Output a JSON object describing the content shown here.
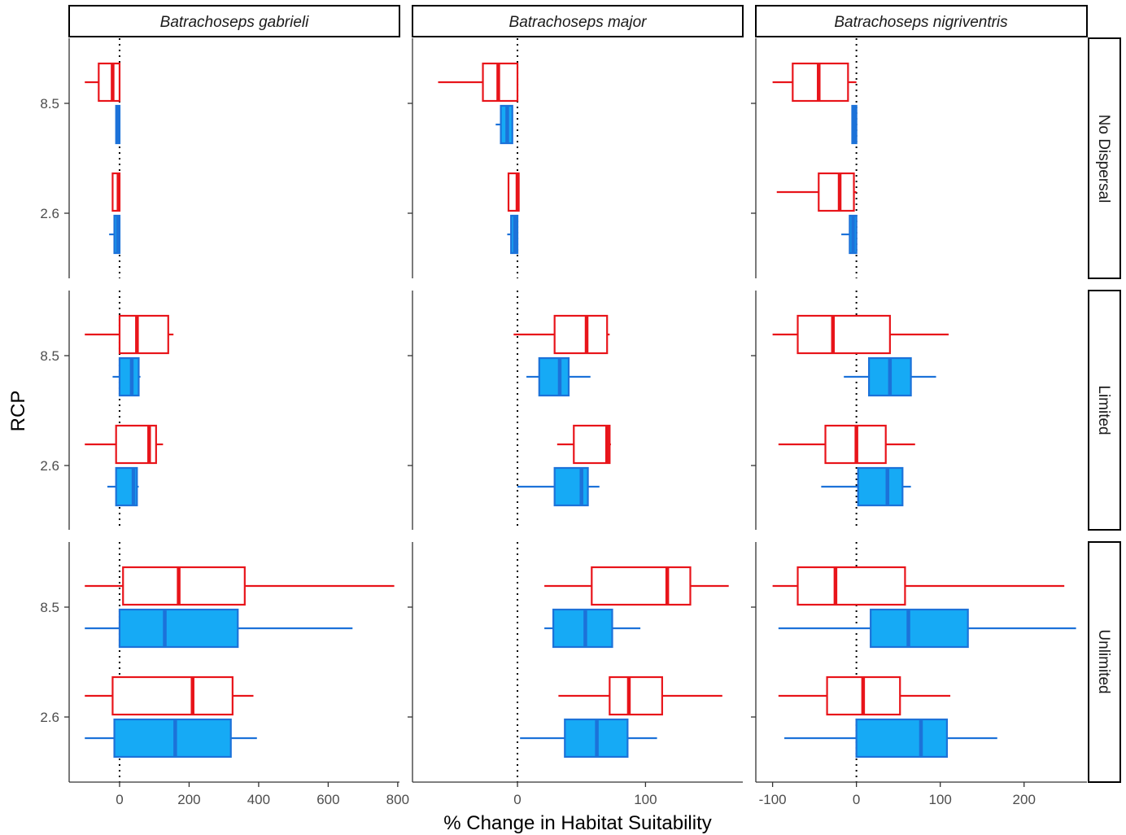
{
  "chart_data": {
    "type": "box",
    "title": "",
    "xlabel": "% Change in Habitat Suitability",
    "ylabel": "RCP",
    "y_categories": [
      "8.5",
      "2.6"
    ],
    "species": [
      "Batrachoseps gabrieli",
      "Batrachoseps major",
      "Batrachoseps nigriventris"
    ],
    "dispersal": [
      "No Dispersal",
      "Limited",
      "Unlimited"
    ],
    "colors": {
      "red": "#e8141a",
      "blue": "#1c72d9",
      "blue_fill": "#16aaf5"
    },
    "x_axes": [
      {
        "xlim": [
          -145,
          805
        ],
        "ticks": [
          0,
          200,
          400,
          600,
          800
        ],
        "tick_labels": [
          "0",
          "200",
          "400",
          "600",
          "800"
        ]
      },
      {
        "xlim": [
          -82,
          176
        ],
        "ticks": [
          0,
          100
        ],
        "tick_labels": [
          "0",
          "100"
        ]
      },
      {
        "xlim": [
          -120,
          275
        ],
        "ticks": [
          -100,
          0,
          100,
          200
        ],
        "tick_labels": [
          "-100",
          "0",
          "100",
          "200"
        ]
      }
    ],
    "reference_line": 0,
    "boxes": [
      {
        "species": 0,
        "dispersal": 0,
        "rcp": "8.5",
        "color": "red",
        "stats": [
          -100,
          -60,
          -20,
          0,
          0
        ]
      },
      {
        "species": 0,
        "dispersal": 0,
        "rcp": "8.5",
        "color": "blue",
        "stats": [
          -10,
          -10,
          -3,
          0,
          0
        ]
      },
      {
        "species": 0,
        "dispersal": 0,
        "rcp": "2.6",
        "color": "red",
        "stats": [
          -20,
          -20,
          -3,
          0,
          0
        ]
      },
      {
        "species": 0,
        "dispersal": 0,
        "rcp": "2.6",
        "color": "blue",
        "stats": [
          -30,
          -15,
          -5,
          0,
          0
        ]
      },
      {
        "species": 1,
        "dispersal": 0,
        "rcp": "8.5",
        "color": "red",
        "stats": [
          -62,
          -27,
          -15,
          0,
          0
        ]
      },
      {
        "species": 1,
        "dispersal": 0,
        "rcp": "8.5",
        "color": "blue",
        "stats": [
          -17,
          -13,
          -8,
          -4,
          -4
        ]
      },
      {
        "species": 1,
        "dispersal": 0,
        "rcp": "2.6",
        "color": "red",
        "stats": [
          -7,
          -7,
          0,
          1,
          1
        ]
      },
      {
        "species": 1,
        "dispersal": 0,
        "rcp": "2.6",
        "color": "blue",
        "stats": [
          -8,
          -5,
          -2,
          0,
          0
        ]
      },
      {
        "species": 2,
        "dispersal": 0,
        "rcp": "8.5",
        "color": "red",
        "stats": [
          -100,
          -76,
          -45,
          -10,
          0
        ]
      },
      {
        "species": 2,
        "dispersal": 0,
        "rcp": "8.5",
        "color": "blue",
        "stats": [
          -5,
          -5,
          -2,
          0,
          0
        ]
      },
      {
        "species": 2,
        "dispersal": 0,
        "rcp": "2.6",
        "color": "red",
        "stats": [
          -95,
          -45,
          -20,
          -3,
          0
        ]
      },
      {
        "species": 2,
        "dispersal": 0,
        "rcp": "2.6",
        "color": "blue",
        "stats": [
          -18,
          -8,
          -4,
          0,
          0
        ]
      },
      {
        "species": 0,
        "dispersal": 1,
        "rcp": "8.5",
        "color": "red",
        "stats": [
          -100,
          0,
          50,
          140,
          155
        ]
      },
      {
        "species": 0,
        "dispersal": 1,
        "rcp": "8.5",
        "color": "blue",
        "stats": [
          -20,
          0,
          35,
          55,
          60
        ]
      },
      {
        "species": 0,
        "dispersal": 1,
        "rcp": "2.6",
        "color": "red",
        "stats": [
          -100,
          -10,
          85,
          105,
          125
        ]
      },
      {
        "species": 0,
        "dispersal": 1,
        "rcp": "2.6",
        "color": "blue",
        "stats": [
          -35,
          -10,
          40,
          50,
          55
        ]
      },
      {
        "species": 1,
        "dispersal": 1,
        "rcp": "8.5",
        "color": "red",
        "stats": [
          -3,
          29,
          54,
          70,
          72
        ]
      },
      {
        "species": 1,
        "dispersal": 1,
        "rcp": "8.5",
        "color": "blue",
        "stats": [
          7,
          17,
          33,
          40,
          57
        ]
      },
      {
        "species": 1,
        "dispersal": 1,
        "rcp": "2.6",
        "color": "red",
        "stats": [
          31,
          44,
          70,
          72,
          73
        ]
      },
      {
        "species": 1,
        "dispersal": 1,
        "rcp": "2.6",
        "color": "blue",
        "stats": [
          0,
          29,
          50,
          55,
          64
        ]
      },
      {
        "species": 2,
        "dispersal": 1,
        "rcp": "8.5",
        "color": "red",
        "stats": [
          -100,
          -70,
          -28,
          40,
          110
        ]
      },
      {
        "species": 2,
        "dispersal": 1,
        "rcp": "8.5",
        "color": "blue",
        "stats": [
          -15,
          15,
          40,
          65,
          95
        ]
      },
      {
        "species": 2,
        "dispersal": 1,
        "rcp": "2.6",
        "color": "red",
        "stats": [
          -93,
          -37,
          0,
          35,
          70
        ]
      },
      {
        "species": 2,
        "dispersal": 1,
        "rcp": "2.6",
        "color": "blue",
        "stats": [
          -42,
          2,
          37,
          55,
          65
        ]
      },
      {
        "species": 0,
        "dispersal": 2,
        "rcp": "8.5",
        "color": "red",
        "stats": [
          -100,
          10,
          170,
          360,
          790
        ]
      },
      {
        "species": 0,
        "dispersal": 2,
        "rcp": "8.5",
        "color": "blue",
        "stats": [
          -100,
          0,
          130,
          340,
          670
        ]
      },
      {
        "species": 0,
        "dispersal": 2,
        "rcp": "2.6",
        "color": "red",
        "stats": [
          -100,
          -20,
          210,
          325,
          385
        ]
      },
      {
        "species": 0,
        "dispersal": 2,
        "rcp": "2.6",
        "color": "blue",
        "stats": [
          -100,
          -15,
          160,
          320,
          395
        ]
      },
      {
        "species": 1,
        "dispersal": 2,
        "rcp": "8.5",
        "color": "red",
        "stats": [
          21,
          58,
          117,
          135,
          165
        ]
      },
      {
        "species": 1,
        "dispersal": 2,
        "rcp": "8.5",
        "color": "blue",
        "stats": [
          21,
          28,
          53,
          74,
          96
        ]
      },
      {
        "species": 1,
        "dispersal": 2,
        "rcp": "2.6",
        "color": "red",
        "stats": [
          32,
          72,
          87,
          113,
          160
        ]
      },
      {
        "species": 1,
        "dispersal": 2,
        "rcp": "2.6",
        "color": "blue",
        "stats": [
          2,
          37,
          62,
          86,
          109
        ]
      },
      {
        "species": 2,
        "dispersal": 2,
        "rcp": "8.5",
        "color": "red",
        "stats": [
          -100,
          -70,
          -25,
          58,
          248
        ]
      },
      {
        "species": 2,
        "dispersal": 2,
        "rcp": "8.5",
        "color": "blue",
        "stats": [
          -93,
          17,
          62,
          133,
          262
        ]
      },
      {
        "species": 2,
        "dispersal": 2,
        "rcp": "2.6",
        "color": "red",
        "stats": [
          -93,
          -35,
          8,
          52,
          112
        ]
      },
      {
        "species": 2,
        "dispersal": 2,
        "rcp": "2.6",
        "color": "blue",
        "stats": [
          -86,
          0,
          77,
          108,
          168
        ]
      }
    ]
  }
}
